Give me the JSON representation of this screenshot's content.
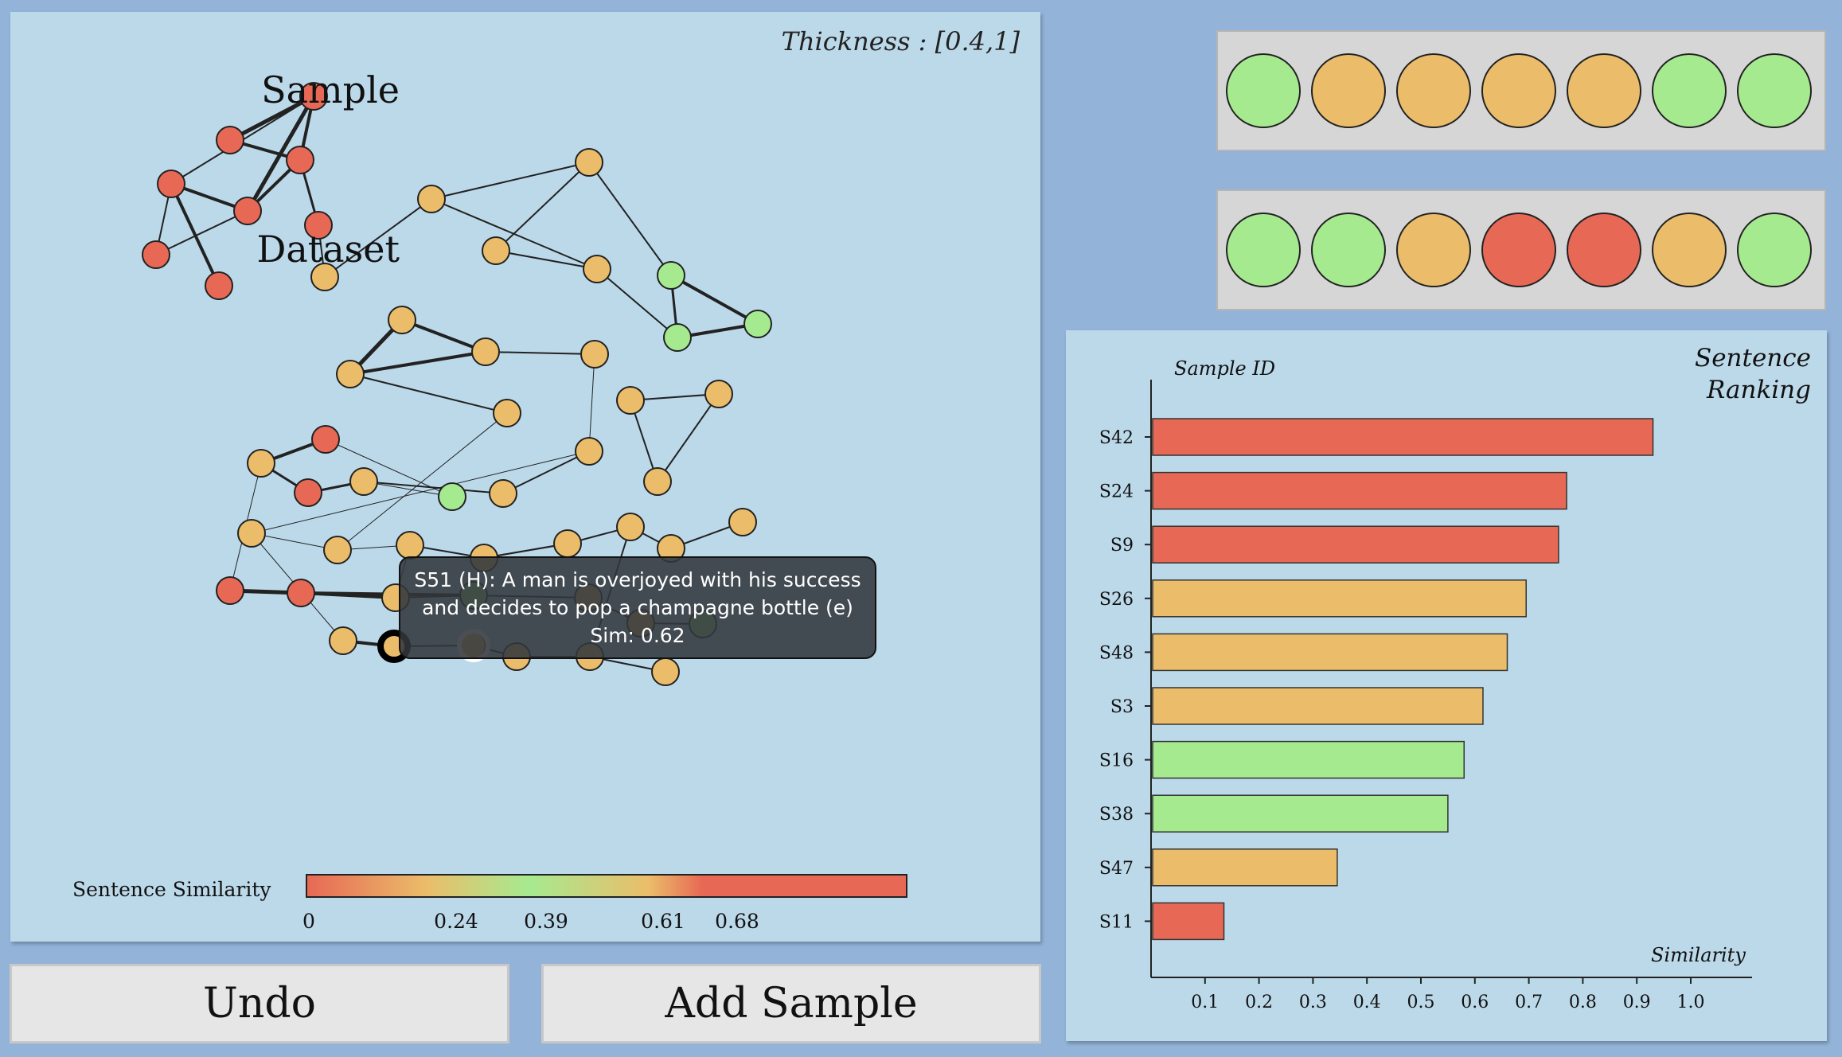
{
  "graph": {
    "thickness_label": "Thickness : [0.4,1]",
    "legend_label": "Sentence Similarity",
    "colorbar_ticks": [
      "0",
      "0.24",
      "0.39",
      "0.61",
      "0.68"
    ],
    "tooltip": {
      "line1": "S51 (H): A man is overjoyed with his  success",
      "line2": "and decides to pop a champagne bottle (e)",
      "line3": "Sim: 0.62"
    }
  },
  "colors": {
    "red": "#e76955",
    "orange": "#ebbd6a",
    "green": "#a6ea90"
  },
  "sample_row": {
    "label": "Sample",
    "swatches": [
      "green",
      "orange",
      "orange",
      "orange",
      "orange",
      "green",
      "green"
    ]
  },
  "dataset_row": {
    "label": "Dataset",
    "swatches": [
      "green",
      "green",
      "orange",
      "red",
      "red",
      "orange",
      "green"
    ]
  },
  "ranking": {
    "title_line1": "Sentence",
    "title_line2": "Ranking"
  },
  "chart_data": {
    "type": "bar",
    "orientation": "horizontal",
    "ylabel": "Sample ID",
    "xlabel": "Similarity",
    "categories": [
      "S42",
      "S24",
      "S9",
      "S26",
      "S48",
      "S3",
      "S16",
      "S38",
      "S47",
      "S11"
    ],
    "values": [
      0.93,
      0.77,
      0.755,
      0.695,
      0.66,
      0.615,
      0.58,
      0.55,
      0.345,
      0.135
    ],
    "bar_colors": [
      "red",
      "red",
      "red",
      "orange",
      "orange",
      "orange",
      "green",
      "green",
      "orange",
      "red"
    ],
    "xticks": [
      "0.1",
      "0.2",
      "0.3",
      "0.4",
      "0.5",
      "0.6",
      "0.7",
      "0.8",
      "0.9",
      "1.0"
    ],
    "xlim": [
      0,
      1.0
    ]
  },
  "buttons": {
    "undo": "Undo",
    "add_sample": "Add Sample"
  }
}
